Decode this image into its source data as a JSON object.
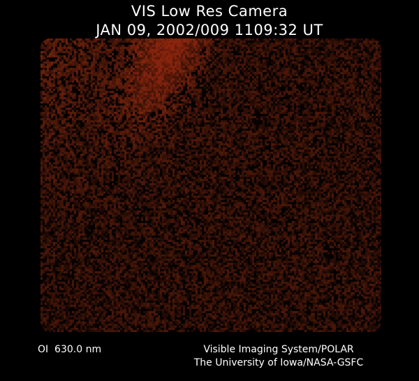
{
  "header": {
    "title": "VIS Low Res Camera",
    "timestamp": "JAN 09, 2002/009 1109:32 UT"
  },
  "footer": {
    "wavelength": "OI  630.0 nm",
    "credit_line1": "Visible Imaging System/POLAR",
    "credit_line2": "The University of Iowa/NASA-GSFC"
  },
  "colors": {
    "image_base": "#5a1a08",
    "image_bright": "#b0400e",
    "background": "#000000"
  }
}
